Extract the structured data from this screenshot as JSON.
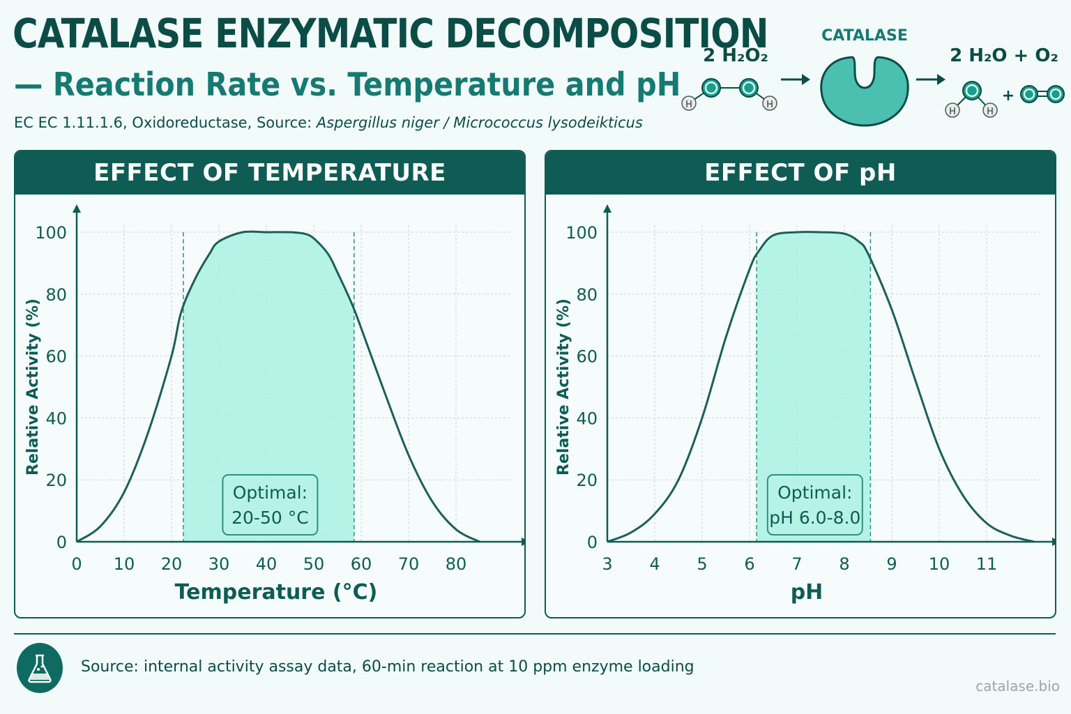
{
  "header": {
    "title": "CATALASE ENZYMATIC DECOMPOSITION",
    "subtitle": "— Reaction Rate vs. Temperature and pH",
    "meta_prefix": "EC EC 1.11.1.6, Oxidoreductase, Source: ",
    "meta_source": "Aspergillus niger / Micrococcus lysodeikticus"
  },
  "reaction": {
    "enzyme_label": "CATALASE",
    "reactant": "2 H₂O₂",
    "product": "2 H₂O + O₂",
    "atom_h": "H",
    "atom_o": "O",
    "plus": "+"
  },
  "colors": {
    "primary": "#0f5c55",
    "accent": "#2e8f85",
    "fill": "#a9f1e3",
    "curve": "#1b5f58"
  },
  "chart_data": [
    {
      "type": "area",
      "panel_title": "EFFECT OF TEMPERATURE",
      "xlabel": "Temperature (°C)",
      "ylabel": "Relative Activity (%)",
      "xlim": [
        0,
        90
      ],
      "ylim": [
        0,
        100
      ],
      "x_ticks": [
        0,
        10,
        20,
        30,
        40,
        50,
        60,
        70,
        80
      ],
      "y_ticks": [
        0,
        20,
        40,
        60,
        80,
        100
      ],
      "grid": true,
      "x": [
        0,
        5,
        10,
        15,
        20,
        22,
        25,
        28,
        30,
        35,
        40,
        45,
        48,
        50,
        53,
        55,
        58,
        60,
        65,
        70,
        75,
        80,
        85
      ],
      "y": [
        0,
        5,
        16,
        35,
        60,
        74,
        85,
        93,
        97,
        100,
        100,
        100,
        99.5,
        98,
        93,
        87,
        77,
        69,
        48,
        28,
        13,
        4,
        0
      ],
      "optimal_band": [
        22.5,
        58.5
      ],
      "optimal_label": [
        "Optimal:",
        "20-50 °C"
      ]
    },
    {
      "type": "area",
      "panel_title": "EFFECT OF pH",
      "xlabel": "pH",
      "ylabel": "Relative Activity (%)",
      "xlim": [
        3,
        12
      ],
      "ylim": [
        0,
        100
      ],
      "x_ticks": [
        3,
        4,
        5,
        6,
        7,
        8,
        9,
        10,
        11
      ],
      "y_ticks": [
        0,
        20,
        40,
        60,
        80,
        100
      ],
      "grid": true,
      "x": [
        3,
        3.5,
        4,
        4.5,
        5,
        5.5,
        6,
        6.2,
        6.5,
        7,
        7.5,
        8,
        8.3,
        8.5,
        9,
        9.5,
        10,
        10.5,
        11,
        11.5,
        12
      ],
      "y": [
        0,
        3,
        9,
        20,
        40,
        66,
        88,
        94,
        99,
        100,
        100,
        99.5,
        97,
        93,
        75,
        52,
        30,
        15,
        6,
        2,
        0
      ],
      "optimal_band": [
        6.15,
        8.55
      ],
      "optimal_label": [
        "Optimal:",
        "pH 6.0-8.0"
      ]
    }
  ],
  "footer": {
    "source": "Source: internal activity assay data, 60-min reaction at 10 ppm enzyme loading",
    "site": "catalase.bio"
  }
}
